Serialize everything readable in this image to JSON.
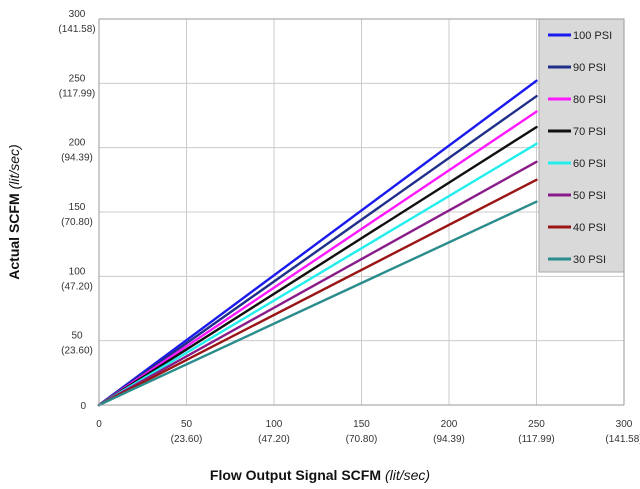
{
  "chart_data": {
    "type": "line",
    "xlabel": "Flow Output Signal SCFM",
    "xlabel_unit": "(lit/sec)",
    "ylabel": "Actual SCFM",
    "ylabel_unit": "(lit/sec)",
    "xlim": [
      0,
      300
    ],
    "ylim": [
      0,
      300
    ],
    "grid": true,
    "legend_position": "right",
    "x_ticks": [
      {
        "value": 0,
        "label": "0",
        "sublabel": ""
      },
      {
        "value": 50,
        "label": "50",
        "sublabel": "(23.60)"
      },
      {
        "value": 100,
        "label": "100",
        "sublabel": "(47.20)"
      },
      {
        "value": 150,
        "label": "150",
        "sublabel": "(70.80)"
      },
      {
        "value": 200,
        "label": "200",
        "sublabel": "(94.39)"
      },
      {
        "value": 250,
        "label": "250",
        "sublabel": "(117.99)"
      },
      {
        "value": 300,
        "label": "300",
        "sublabel": "(141.58)"
      }
    ],
    "y_ticks": [
      {
        "value": 0,
        "label": "0",
        "sublabel": ""
      },
      {
        "value": 50,
        "label": "50",
        "sublabel": "(23.60)"
      },
      {
        "value": 100,
        "label": "100",
        "sublabel": "(47.20)"
      },
      {
        "value": 150,
        "label": "150",
        "sublabel": "(70.80)"
      },
      {
        "value": 200,
        "label": "200",
        "sublabel": "(94.39)"
      },
      {
        "value": 250,
        "label": "250",
        "sublabel": "(117.99)"
      },
      {
        "value": 300,
        "label": "300",
        "sublabel": "(141.58)"
      }
    ],
    "series": [
      {
        "name": "100 PSI",
        "color": "#1a1aee",
        "x": [
          0,
          250
        ],
        "y": [
          0,
          252
        ]
      },
      {
        "name": "90 PSI",
        "color": "#1f2f8a",
        "x": [
          0,
          250
        ],
        "y": [
          0,
          240
        ]
      },
      {
        "name": "80 PSI",
        "color": "#ff19ff",
        "x": [
          0,
          250
        ],
        "y": [
          0,
          228
        ]
      },
      {
        "name": "70 PSI",
        "color": "#111111",
        "x": [
          0,
          250
        ],
        "y": [
          0,
          216
        ]
      },
      {
        "name": "60 PSI",
        "color": "#22eeee",
        "x": [
          0,
          250
        ],
        "y": [
          0,
          203
        ]
      },
      {
        "name": "50 PSI",
        "color": "#8a1c8a",
        "x": [
          0,
          250
        ],
        "y": [
          0,
          189
        ]
      },
      {
        "name": "40 PSI",
        "color": "#9a1515",
        "x": [
          0,
          250
        ],
        "y": [
          0,
          175
        ]
      },
      {
        "name": "30 PSI",
        "color": "#2a8c8c",
        "x": [
          0,
          250
        ],
        "y": [
          0,
          158
        ]
      }
    ],
    "colors": {
      "grid": "#cccccc",
      "legend_bg": "#d9d9d9",
      "axis": "#9a9a9a"
    }
  }
}
